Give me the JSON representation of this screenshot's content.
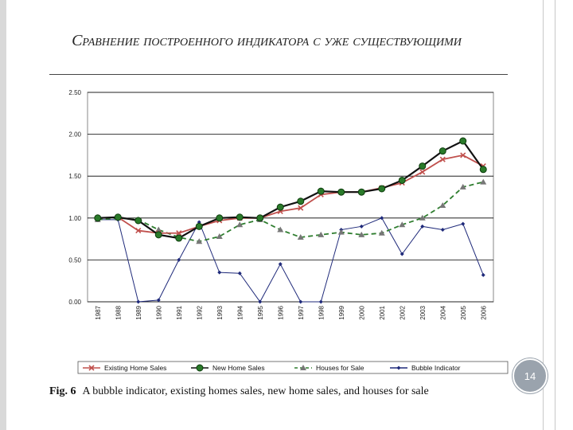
{
  "slide": {
    "title": "Сравнение построенного индикатора с уже существующими",
    "page_number": "14",
    "caption_label": "Fig. 6",
    "caption_text": "A bubble indicator, existing homes sales, new home sales, and houses for sale"
  },
  "chart_data": {
    "type": "line",
    "title": "",
    "xlabel": "",
    "ylabel": "",
    "ylim": [
      0,
      2.5
    ],
    "yticks": [
      "0.00",
      "0.50",
      "1.00",
      "1.50",
      "2.00",
      "2.50"
    ],
    "grid": true,
    "legend_position": "bottom",
    "categories": [
      "1987",
      "1988",
      "1989",
      "1990",
      "1991",
      "1992",
      "1993",
      "1994",
      "1995",
      "1996",
      "1997",
      "1998",
      "1999",
      "2000",
      "2001",
      "2002",
      "2003",
      "2004",
      "2005",
      "2006"
    ],
    "series": [
      {
        "name": "Existing Home Sales",
        "color": "#c0504d",
        "marker": "x",
        "style": "solid",
        "values": [
          1.0,
          1.01,
          0.85,
          0.82,
          0.82,
          0.9,
          0.97,
          1.0,
          1.0,
          1.08,
          1.12,
          1.28,
          1.31,
          1.31,
          1.36,
          1.42,
          1.55,
          1.7,
          1.75,
          1.62
        ]
      },
      {
        "name": "New Home Sales",
        "color": "#1a1a1a",
        "marker": "circle",
        "style": "solid",
        "values": [
          1.0,
          1.01,
          0.97,
          0.8,
          0.76,
          0.9,
          1.0,
          1.01,
          1.0,
          1.13,
          1.2,
          1.32,
          1.31,
          1.31,
          1.35,
          1.45,
          1.62,
          1.8,
          1.92,
          1.58
        ]
      },
      {
        "name": "Houses for Sale",
        "color": "#3a7a3a",
        "marker": "triangle",
        "style": "dashed",
        "values": [
          0.98,
          1.0,
          0.98,
          0.86,
          0.77,
          0.72,
          0.78,
          0.92,
          0.98,
          0.86,
          0.77,
          0.8,
          0.83,
          0.8,
          0.82,
          0.92,
          1.0,
          1.15,
          1.37,
          1.43
        ]
      },
      {
        "name": "Bubble Indicator",
        "color": "#1f2a7a",
        "marker": "diamond",
        "style": "solid",
        "values": [
          0.98,
          0.98,
          0.0,
          0.02,
          0.5,
          0.95,
          0.35,
          0.34,
          0.0,
          0.45,
          0.0,
          0.0,
          0.86,
          0.9,
          1.0,
          0.57,
          0.9,
          0.86,
          0.93,
          0.32
        ]
      }
    ]
  }
}
